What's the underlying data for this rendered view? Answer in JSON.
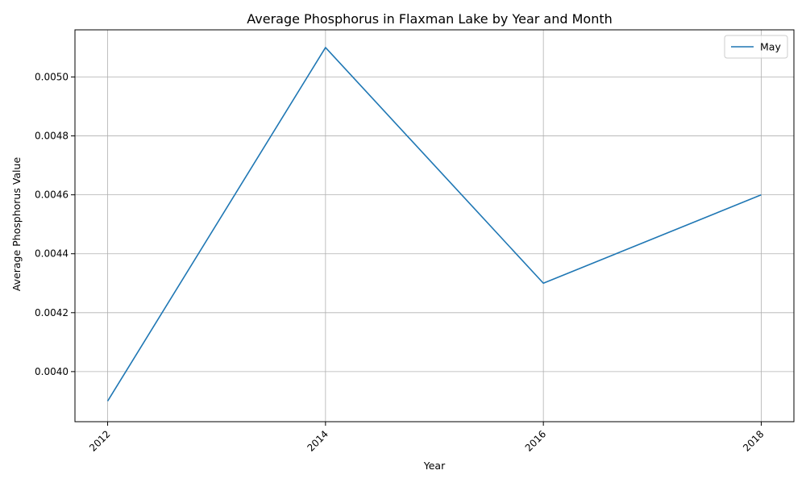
{
  "chart_data": {
    "type": "line",
    "title": "Average Phosphorus in Flaxman Lake by Year and Month",
    "xlabel": "Year",
    "ylabel": "Average Phosphorus Value",
    "x": [
      2012,
      2014,
      2016,
      2018
    ],
    "x_tick_labels": [
      "2012",
      "2014",
      "2016",
      "2018"
    ],
    "y_tick_labels": [
      "0.0040",
      "0.0042",
      "0.0044",
      "0.0046",
      "0.0048",
      "0.0050"
    ],
    "y_ticks": [
      0.004,
      0.0042,
      0.0044,
      0.0046,
      0.0048,
      0.005
    ],
    "xlim": [
      2011.7,
      2018.3
    ],
    "ylim": [
      0.00383,
      0.00516
    ],
    "grid": true,
    "legend_position": "top-right",
    "series": [
      {
        "name": "May",
        "color": "#1f77b4",
        "values": [
          0.0039,
          0.0051,
          0.0043,
          0.0046
        ]
      }
    ]
  }
}
